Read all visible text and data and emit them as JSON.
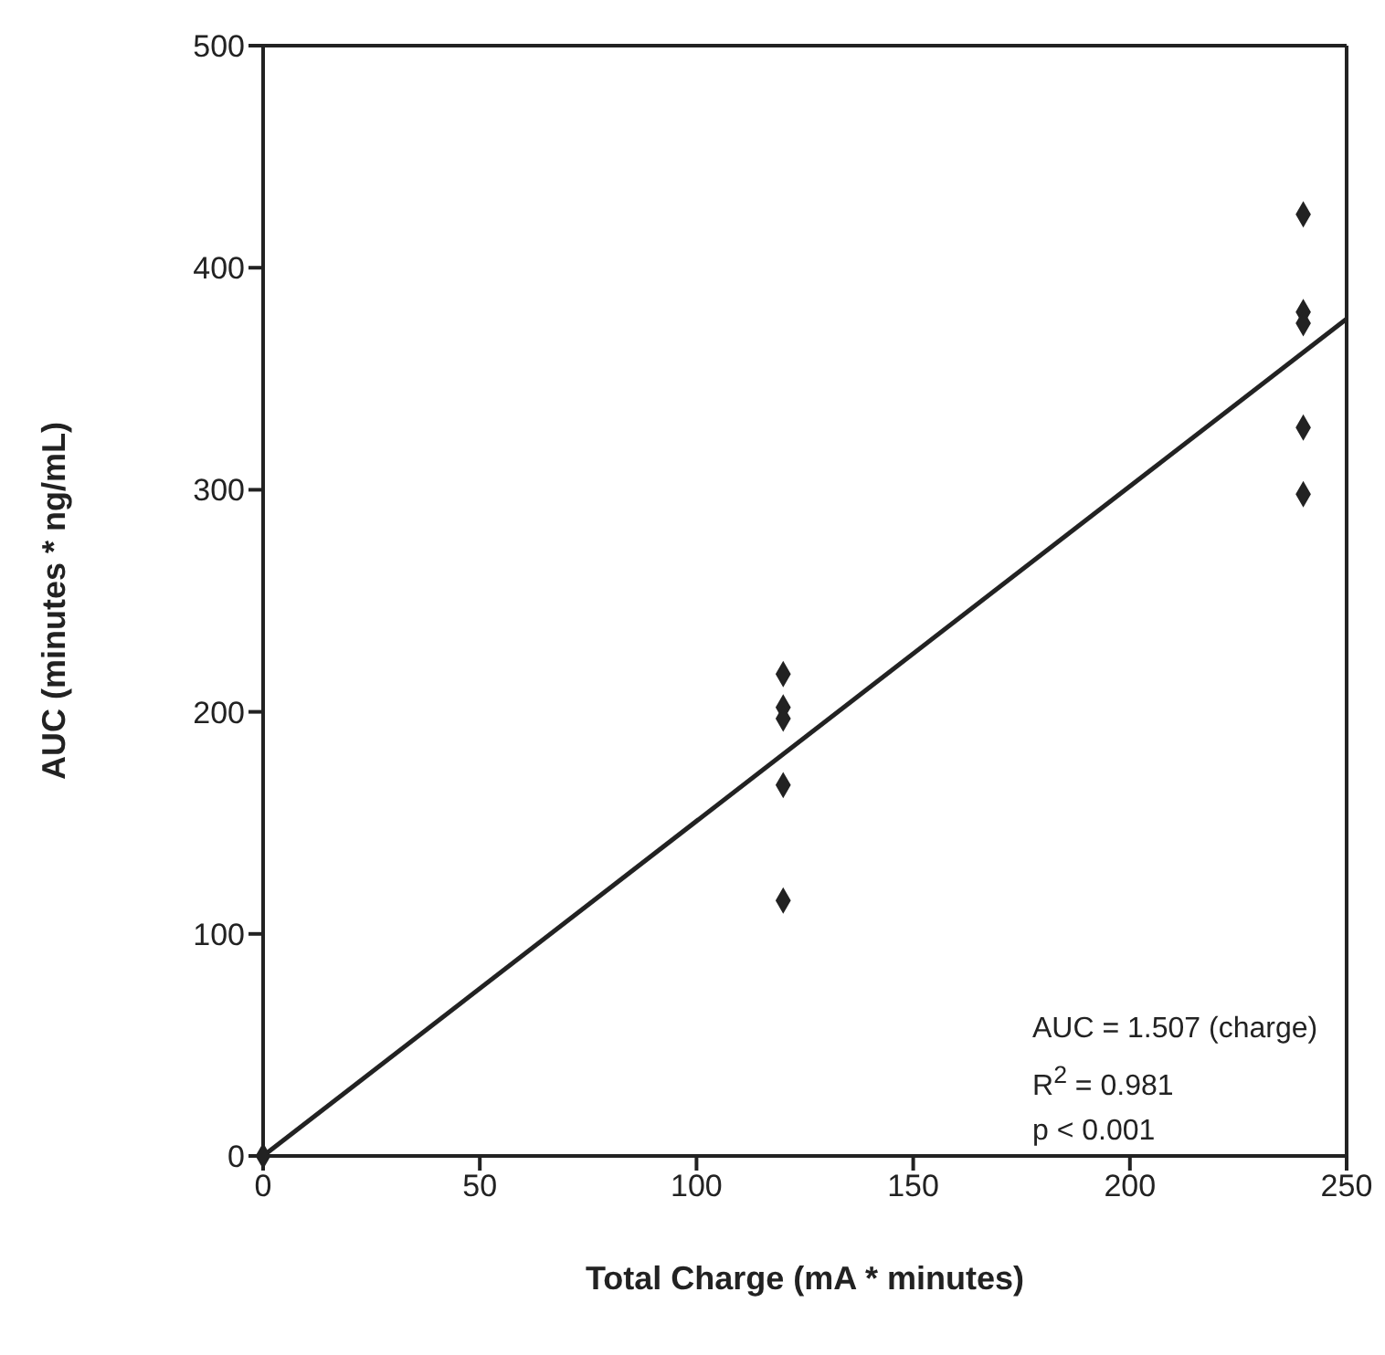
{
  "chart_data": {
    "type": "scatter",
    "xlabel": "Total Charge (mA * minutes)",
    "ylabel": "AUC (minutes * ng/mL)",
    "xlim": [
      0,
      250
    ],
    "xticks": [
      0,
      50,
      100,
      150,
      200,
      250
    ],
    "ylim": [
      0,
      500
    ],
    "yticks": [
      0,
      100,
      200,
      300,
      400,
      500
    ],
    "series": [
      {
        "color": "#222222",
        "marker": "diamond",
        "x": [
          0,
          120,
          120,
          120,
          120,
          120,
          240,
          240,
          240,
          240,
          240
        ],
        "values": [
          0,
          217,
          202,
          197,
          167,
          115,
          424,
          380,
          375,
          328,
          298
        ]
      },
      {
        "type": "line",
        "color": "#222222",
        "x": [
          0,
          250
        ],
        "values": [
          0,
          377
        ],
        "line_style": "solid"
      }
    ],
    "annotations": [
      "AUC = 1.507 (charge)",
      "R$^{2}$ = 0.981",
      "p < 0.001"
    ]
  }
}
